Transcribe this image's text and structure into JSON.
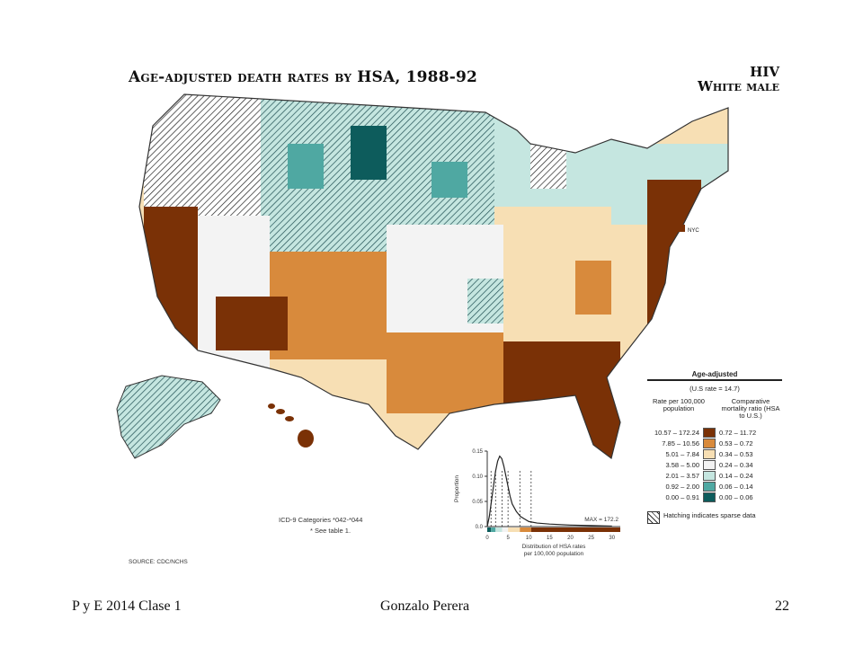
{
  "title": "Age-adjusted death rates by HSA, 1988-92",
  "topic": {
    "line1": "HIV",
    "line2": "White male"
  },
  "map": {
    "inset_label": "NYC"
  },
  "legend": {
    "header": "Age-adjusted",
    "us_rate": "(U.S rate = 14.7)",
    "rate_header": "Rate per 100,000 population",
    "ratio_header": "Comparative mortality ratio (HSA to U.S.)",
    "rows": [
      {
        "rate": "10.57 – 172.24",
        "ratio": "0.72 – 11.72",
        "color": "#7a3106"
      },
      {
        "rate": "7.85 – 10.56",
        "ratio": "0.53 – 0.72",
        "color": "#d88a3c"
      },
      {
        "rate": "5.01 – 7.84",
        "ratio": "0.34 – 0.53",
        "color": "#f7dfb4"
      },
      {
        "rate": "3.58 – 5.00",
        "ratio": "0.24 – 0.34",
        "color": "#f3f3f3"
      },
      {
        "rate": "2.01 – 3.57",
        "ratio": "0.14 – 0.24",
        "color": "#c5e6e0"
      },
      {
        "rate": "0.92 – 2.00",
        "ratio": "0.06 – 0.14",
        "color": "#4fa8a2"
      },
      {
        "rate": "0.00 – 0.91",
        "ratio": "0.00 – 0.06",
        "color": "#0d5c5c"
      }
    ],
    "hatch_note": "Hatching indicates sparse data"
  },
  "histogram": {
    "y_label": "Proportion",
    "y_ticks": [
      "0.15",
      "0.10",
      "0.05",
      "0.0"
    ],
    "x_ticks": [
      "0",
      "5",
      "10",
      "15",
      "20",
      "25",
      "30"
    ],
    "x_label_1": "Distribution of HSA rates",
    "x_label_2": "per 100,000 population",
    "max_label": "MAX = 172.2",
    "chart_data": {
      "type": "area",
      "xlabel": "Distribution of HSA rates per 100,000 population",
      "ylabel": "Proportion",
      "xlim": [
        0,
        32
      ],
      "ylim": [
        0,
        0.15
      ],
      "x": [
        0,
        0.5,
        1,
        1.5,
        2,
        2.5,
        3,
        3.5,
        4,
        4.5,
        5,
        5.5,
        6,
        7,
        8,
        9,
        10,
        12,
        15,
        20,
        25,
        30
      ],
      "y": [
        0.0,
        0.02,
        0.05,
        0.08,
        0.11,
        0.13,
        0.14,
        0.135,
        0.12,
        0.1,
        0.08,
        0.06,
        0.045,
        0.03,
        0.02,
        0.015,
        0.01,
        0.007,
        0.005,
        0.003,
        0.002,
        0.001
      ],
      "class_breaks": [
        0.91,
        2.0,
        3.57,
        5.0,
        7.84,
        10.56
      ]
    }
  },
  "icd_note_1": "ICD-9 Categories *042-*044",
  "icd_note_2": "* See table 1.",
  "source": "SOURCE: CDC/NCHS",
  "footer": {
    "left": "P y E 2014 Clase 1",
    "center": "Gonzalo Perera",
    "right": "22"
  }
}
